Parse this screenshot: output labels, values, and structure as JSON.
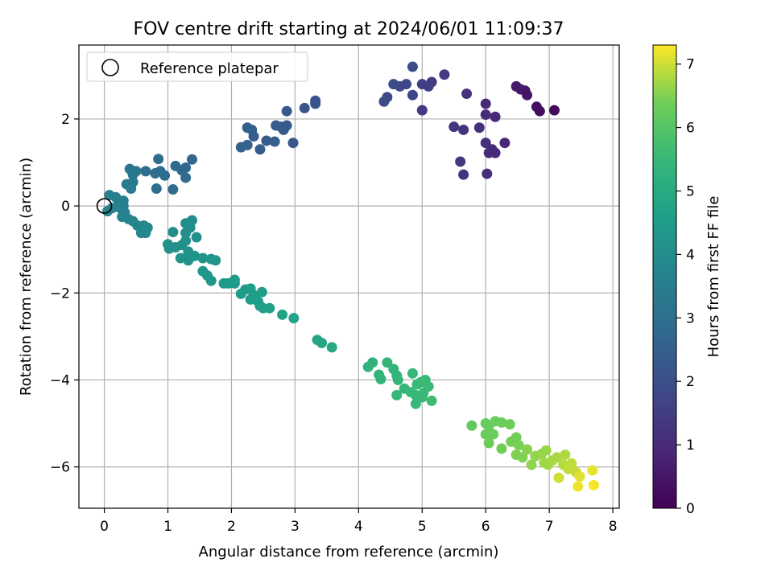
{
  "chart_data": {
    "type": "scatter",
    "title": "FOV centre drift starting at 2024/06/01 11:09:37",
    "xlabel": "Angular distance from reference (arcmin)",
    "ylabel": "Rotation from reference (arcmin)",
    "xlim": [
      -0.4,
      8.1
    ],
    "ylim": [
      -6.95,
      3.7
    ],
    "xticks": [
      0,
      1,
      2,
      3,
      4,
      5,
      6,
      7,
      8
    ],
    "yticks": [
      2,
      0,
      -2,
      -4,
      -6
    ],
    "grid": true,
    "legend": {
      "position": "top-left",
      "entries": [
        "Reference platepar"
      ]
    },
    "reference_point": {
      "x": 0,
      "y": 0,
      "label": "Reference platepar"
    },
    "colorbar": {
      "label": "Hours from first FF file",
      "min": 0,
      "max": 7.3,
      "ticks": [
        0,
        1,
        2,
        3,
        4,
        5,
        6,
        7
      ],
      "colormap": "viridis"
    },
    "points": [
      {
        "x": 4.85,
        "y": 3.2,
        "c": 1.9
      },
      {
        "x": 4.45,
        "y": 2.5,
        "c": 1.8
      },
      {
        "x": 4.55,
        "y": 2.8,
        "c": 1.9
      },
      {
        "x": 4.65,
        "y": 2.75,
        "c": 1.85
      },
      {
        "x": 4.75,
        "y": 2.8,
        "c": 1.8
      },
      {
        "x": 4.85,
        "y": 2.55,
        "c": 1.75
      },
      {
        "x": 4.4,
        "y": 2.4,
        "c": 1.9
      },
      {
        "x": 5.0,
        "y": 2.8,
        "c": 1.6
      },
      {
        "x": 5.1,
        "y": 2.75,
        "c": 1.55
      },
      {
        "x": 5.15,
        "y": 2.85,
        "c": 1.5
      },
      {
        "x": 5.35,
        "y": 3.02,
        "c": 1.4
      },
      {
        "x": 5.0,
        "y": 2.2,
        "c": 1.45
      },
      {
        "x": 5.7,
        "y": 2.58,
        "c": 1.2
      },
      {
        "x": 6.0,
        "y": 2.35,
        "c": 1.0
      },
      {
        "x": 5.5,
        "y": 1.82,
        "c": 1.3
      },
      {
        "x": 5.65,
        "y": 1.75,
        "c": 1.25
      },
      {
        "x": 5.9,
        "y": 1.8,
        "c": 1.1
      },
      {
        "x": 6.0,
        "y": 2.1,
        "c": 1.05
      },
      {
        "x": 6.15,
        "y": 2.05,
        "c": 1.0
      },
      {
        "x": 6.0,
        "y": 1.45,
        "c": 1.1
      },
      {
        "x": 6.1,
        "y": 1.3,
        "c": 1.0
      },
      {
        "x": 6.3,
        "y": 1.45,
        "c": 0.9
      },
      {
        "x": 5.6,
        "y": 1.02,
        "c": 1.3
      },
      {
        "x": 6.05,
        "y": 1.22,
        "c": 1.05
      },
      {
        "x": 6.15,
        "y": 1.22,
        "c": 1.0
      },
      {
        "x": 5.65,
        "y": 0.72,
        "c": 1.25
      },
      {
        "x": 6.02,
        "y": 0.74,
        "c": 1.05
      },
      {
        "x": 6.48,
        "y": 2.75,
        "c": 0.6
      },
      {
        "x": 6.55,
        "y": 2.68,
        "c": 0.55
      },
      {
        "x": 6.62,
        "y": 2.65,
        "c": 0.5
      },
      {
        "x": 6.65,
        "y": 2.55,
        "c": 0.45
      },
      {
        "x": 6.8,
        "y": 2.28,
        "c": 0.35
      },
      {
        "x": 6.85,
        "y": 2.18,
        "c": 0.3
      },
      {
        "x": 7.08,
        "y": 2.2,
        "c": 0.2
      },
      {
        "x": 2.15,
        "y": 1.35,
        "c": 2.6
      },
      {
        "x": 2.25,
        "y": 1.4,
        "c": 2.55
      },
      {
        "x": 2.25,
        "y": 1.8,
        "c": 2.5
      },
      {
        "x": 2.32,
        "y": 1.75,
        "c": 2.5
      },
      {
        "x": 2.35,
        "y": 1.6,
        "c": 2.45
      },
      {
        "x": 2.45,
        "y": 1.3,
        "c": 2.45
      },
      {
        "x": 2.55,
        "y": 1.5,
        "c": 2.4
      },
      {
        "x": 2.68,
        "y": 1.48,
        "c": 2.4
      },
      {
        "x": 2.7,
        "y": 1.85,
        "c": 2.35
      },
      {
        "x": 2.78,
        "y": 1.82,
        "c": 2.35
      },
      {
        "x": 2.82,
        "y": 1.75,
        "c": 2.35
      },
      {
        "x": 2.87,
        "y": 1.85,
        "c": 2.3
      },
      {
        "x": 2.87,
        "y": 2.18,
        "c": 2.3
      },
      {
        "x": 2.97,
        "y": 1.45,
        "c": 2.3
      },
      {
        "x": 3.15,
        "y": 2.25,
        "c": 2.2
      },
      {
        "x": 3.32,
        "y": 2.35,
        "c": 2.15
      },
      {
        "x": 3.32,
        "y": 2.42,
        "c": 2.1
      },
      {
        "x": 0.85,
        "y": 1.08,
        "c": 2.9
      },
      {
        "x": 0.65,
        "y": 0.8,
        "c": 3.0
      },
      {
        "x": 0.8,
        "y": 0.75,
        "c": 2.95
      },
      {
        "x": 0.88,
        "y": 0.8,
        "c": 2.9
      },
      {
        "x": 0.95,
        "y": 0.7,
        "c": 2.9
      },
      {
        "x": 1.12,
        "y": 0.92,
        "c": 2.8
      },
      {
        "x": 1.22,
        "y": 0.82,
        "c": 2.8
      },
      {
        "x": 1.28,
        "y": 0.88,
        "c": 2.75
      },
      {
        "x": 1.38,
        "y": 1.07,
        "c": 2.7
      },
      {
        "x": 1.28,
        "y": 0.65,
        "c": 2.8
      },
      {
        "x": 0.82,
        "y": 0.4,
        "c": 3.0
      },
      {
        "x": 1.08,
        "y": 0.38,
        "c": 2.9
      },
      {
        "x": 0.4,
        "y": 0.85,
        "c": 3.3
      },
      {
        "x": 0.45,
        "y": 0.72,
        "c": 3.3
      },
      {
        "x": 0.5,
        "y": 0.8,
        "c": 3.25
      },
      {
        "x": 0.35,
        "y": 0.5,
        "c": 3.4
      },
      {
        "x": 0.45,
        "y": 0.55,
        "c": 3.35
      },
      {
        "x": 0.42,
        "y": 0.4,
        "c": 3.4
      },
      {
        "x": 0.08,
        "y": 0.25,
        "c": 3.6
      },
      {
        "x": 0.18,
        "y": 0.2,
        "c": 3.55
      },
      {
        "x": 0.22,
        "y": 0.12,
        "c": 3.55
      },
      {
        "x": 0.3,
        "y": 0.12,
        "c": 3.5
      },
      {
        "x": 0.3,
        "y": 0.0,
        "c": 3.55
      },
      {
        "x": 0.25,
        "y": -0.05,
        "c": 3.6
      },
      {
        "x": 0.32,
        "y": -0.15,
        "c": 3.6
      },
      {
        "x": 0.05,
        "y": -0.12,
        "c": 3.65
      },
      {
        "x": 0.12,
        "y": -0.05,
        "c": 3.6
      },
      {
        "x": 0.28,
        "y": -0.25,
        "c": 3.65
      },
      {
        "x": 0.38,
        "y": -0.3,
        "c": 3.7
      },
      {
        "x": 0.45,
        "y": -0.35,
        "c": 3.7
      },
      {
        "x": 0.52,
        "y": -0.45,
        "c": 3.75
      },
      {
        "x": 0.62,
        "y": -0.45,
        "c": 3.8
      },
      {
        "x": 0.68,
        "y": -0.5,
        "c": 3.8
      },
      {
        "x": 0.58,
        "y": -0.62,
        "c": 3.8
      },
      {
        "x": 0.65,
        "y": -0.62,
        "c": 3.85
      },
      {
        "x": 1.08,
        "y": -0.6,
        "c": 4.0
      },
      {
        "x": 1.28,
        "y": -0.4,
        "c": 4.0
      },
      {
        "x": 1.38,
        "y": -0.33,
        "c": 4.0
      },
      {
        "x": 1.35,
        "y": -0.5,
        "c": 4.05
      },
      {
        "x": 1.28,
        "y": -0.62,
        "c": 4.05
      },
      {
        "x": 1.45,
        "y": -0.72,
        "c": 4.1
      },
      {
        "x": 1.0,
        "y": -0.88,
        "c": 4.1
      },
      {
        "x": 1.02,
        "y": -0.98,
        "c": 4.1
      },
      {
        "x": 1.12,
        "y": -0.95,
        "c": 4.15
      },
      {
        "x": 1.22,
        "y": -0.9,
        "c": 4.15
      },
      {
        "x": 1.28,
        "y": -0.8,
        "c": 4.15
      },
      {
        "x": 1.32,
        "y": -1.05,
        "c": 4.2
      },
      {
        "x": 1.2,
        "y": -1.2,
        "c": 4.2
      },
      {
        "x": 1.32,
        "y": -1.25,
        "c": 4.2
      },
      {
        "x": 1.42,
        "y": -1.15,
        "c": 4.25
      },
      {
        "x": 1.55,
        "y": -1.2,
        "c": 4.25
      },
      {
        "x": 1.68,
        "y": -1.22,
        "c": 4.3
      },
      {
        "x": 1.75,
        "y": -1.25,
        "c": 4.3
      },
      {
        "x": 1.55,
        "y": -1.5,
        "c": 4.3
      },
      {
        "x": 1.62,
        "y": -1.6,
        "c": 4.35
      },
      {
        "x": 1.68,
        "y": -1.72,
        "c": 4.35
      },
      {
        "x": 1.88,
        "y": -1.78,
        "c": 4.4
      },
      {
        "x": 1.95,
        "y": -1.78,
        "c": 4.4
      },
      {
        "x": 2.05,
        "y": -1.7,
        "c": 4.45
      },
      {
        "x": 2.05,
        "y": -1.78,
        "c": 4.45
      },
      {
        "x": 2.15,
        "y": -2.02,
        "c": 4.5
      },
      {
        "x": 2.22,
        "y": -1.92,
        "c": 4.5
      },
      {
        "x": 2.3,
        "y": -1.9,
        "c": 4.55
      },
      {
        "x": 2.35,
        "y": -2.05,
        "c": 4.55
      },
      {
        "x": 2.3,
        "y": -2.15,
        "c": 4.55
      },
      {
        "x": 2.42,
        "y": -2.2,
        "c": 4.6
      },
      {
        "x": 2.48,
        "y": -1.98,
        "c": 4.6
      },
      {
        "x": 2.45,
        "y": -2.3,
        "c": 4.6
      },
      {
        "x": 2.5,
        "y": -2.35,
        "c": 4.65
      },
      {
        "x": 2.6,
        "y": -2.35,
        "c": 4.65
      },
      {
        "x": 2.8,
        "y": -2.5,
        "c": 4.7
      },
      {
        "x": 2.98,
        "y": -2.58,
        "c": 4.75
      },
      {
        "x": 3.35,
        "y": -3.08,
        "c": 4.85
      },
      {
        "x": 3.42,
        "y": -3.15,
        "c": 4.85
      },
      {
        "x": 3.58,
        "y": -3.25,
        "c": 4.9
      },
      {
        "x": 4.15,
        "y": -3.7,
        "c": 5.3
      },
      {
        "x": 4.22,
        "y": -3.6,
        "c": 5.3
      },
      {
        "x": 4.32,
        "y": -3.88,
        "c": 5.35
      },
      {
        "x": 4.35,
        "y": -3.98,
        "c": 5.35
      },
      {
        "x": 4.45,
        "y": -3.6,
        "c": 5.4
      },
      {
        "x": 4.55,
        "y": -3.75,
        "c": 5.4
      },
      {
        "x": 4.6,
        "y": -3.9,
        "c": 5.4
      },
      {
        "x": 4.62,
        "y": -4.0,
        "c": 5.45
      },
      {
        "x": 4.72,
        "y": -4.2,
        "c": 5.45
      },
      {
        "x": 4.85,
        "y": -3.85,
        "c": 5.5
      },
      {
        "x": 4.92,
        "y": -4.1,
        "c": 5.5
      },
      {
        "x": 4.98,
        "y": -4.05,
        "c": 5.5
      },
      {
        "x": 5.05,
        "y": -4.0,
        "c": 5.55
      },
      {
        "x": 5.1,
        "y": -4.15,
        "c": 5.55
      },
      {
        "x": 4.82,
        "y": -4.28,
        "c": 5.5
      },
      {
        "x": 4.9,
        "y": -4.35,
        "c": 5.5
      },
      {
        "x": 5.02,
        "y": -4.3,
        "c": 5.55
      },
      {
        "x": 4.6,
        "y": -4.35,
        "c": 5.45
      },
      {
        "x": 4.9,
        "y": -4.55,
        "c": 5.5
      },
      {
        "x": 5.0,
        "y": -4.4,
        "c": 5.55
      },
      {
        "x": 5.15,
        "y": -4.48,
        "c": 5.6
      },
      {
        "x": 5.78,
        "y": -5.05,
        "c": 6.2
      },
      {
        "x": 6.0,
        "y": -5.0,
        "c": 6.25
      },
      {
        "x": 6.05,
        "y": -5.05,
        "c": 6.25
      },
      {
        "x": 6.15,
        "y": -4.95,
        "c": 6.3
      },
      {
        "x": 6.25,
        "y": -4.98,
        "c": 6.3
      },
      {
        "x": 6.38,
        "y": -5.02,
        "c": 6.35
      },
      {
        "x": 6.0,
        "y": -5.25,
        "c": 6.3
      },
      {
        "x": 6.12,
        "y": -5.25,
        "c": 6.3
      },
      {
        "x": 6.05,
        "y": -5.45,
        "c": 6.35
      },
      {
        "x": 6.4,
        "y": -5.42,
        "c": 6.4
      },
      {
        "x": 6.48,
        "y": -5.32,
        "c": 6.4
      },
      {
        "x": 6.52,
        "y": -5.5,
        "c": 6.45
      },
      {
        "x": 6.25,
        "y": -5.58,
        "c": 6.4
      },
      {
        "x": 6.48,
        "y": -5.72,
        "c": 6.5
      },
      {
        "x": 6.58,
        "y": -5.78,
        "c": 6.5
      },
      {
        "x": 6.65,
        "y": -5.6,
        "c": 6.55
      },
      {
        "x": 6.72,
        "y": -5.95,
        "c": 6.6
      },
      {
        "x": 6.78,
        "y": -5.75,
        "c": 6.6
      },
      {
        "x": 6.88,
        "y": -5.7,
        "c": 6.65
      },
      {
        "x": 6.95,
        "y": -5.62,
        "c": 6.65
      },
      {
        "x": 6.92,
        "y": -5.9,
        "c": 6.7
      },
      {
        "x": 6.98,
        "y": -5.95,
        "c": 6.7
      },
      {
        "x": 7.05,
        "y": -5.85,
        "c": 6.75
      },
      {
        "x": 7.12,
        "y": -5.78,
        "c": 6.75
      },
      {
        "x": 7.25,
        "y": -5.72,
        "c": 6.8
      },
      {
        "x": 7.22,
        "y": -5.95,
        "c": 6.85
      },
      {
        "x": 7.3,
        "y": -6.05,
        "c": 6.9
      },
      {
        "x": 7.35,
        "y": -5.92,
        "c": 6.9
      },
      {
        "x": 7.42,
        "y": -6.12,
        "c": 6.95
      },
      {
        "x": 7.15,
        "y": -6.25,
        "c": 7.0
      },
      {
        "x": 7.48,
        "y": -6.22,
        "c": 7.1
      },
      {
        "x": 7.68,
        "y": -6.08,
        "c": 7.15
      },
      {
        "x": 7.45,
        "y": -6.45,
        "c": 7.2
      },
      {
        "x": 7.7,
        "y": -6.42,
        "c": 7.25
      }
    ]
  }
}
